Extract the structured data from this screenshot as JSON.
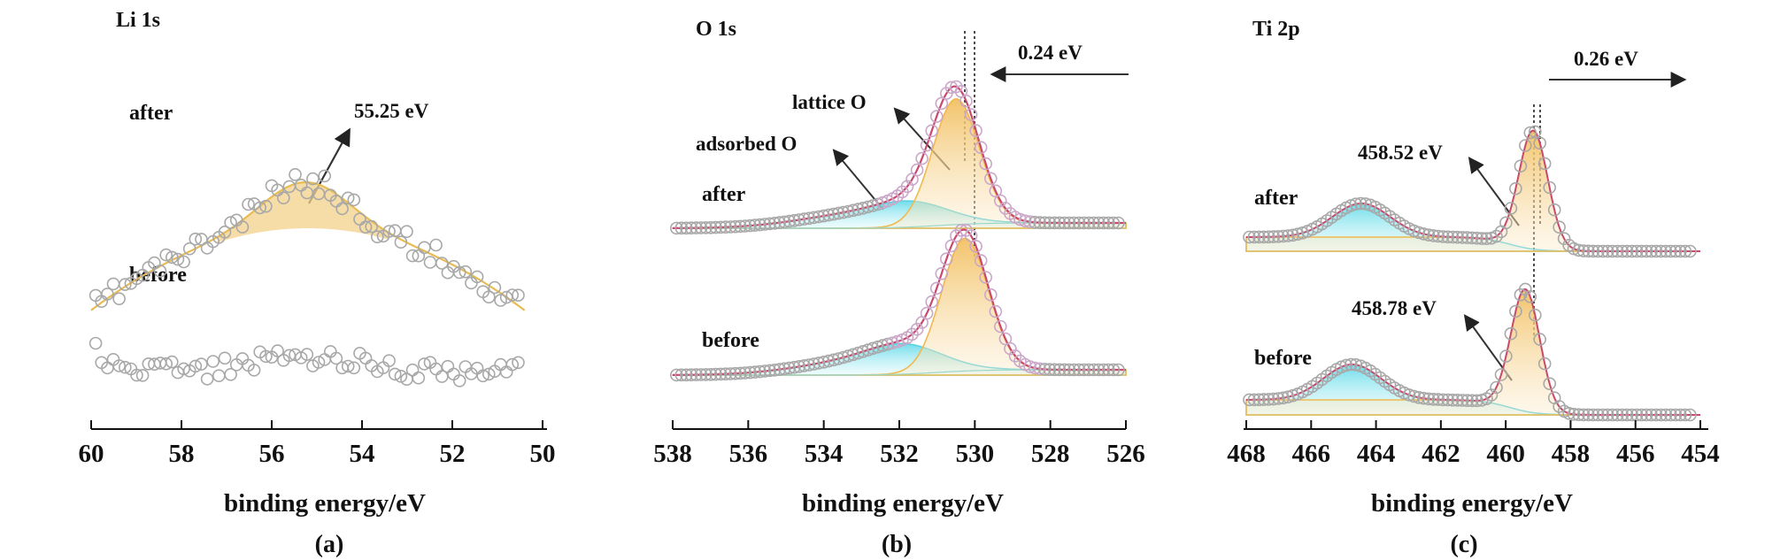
{
  "figure": {
    "panels": [
      {
        "id": "a",
        "panel_label": "(a)",
        "title": "Li 1s",
        "xlabel": "binding energy/eV",
        "ticks": [
          "60",
          "58",
          "56",
          "54",
          "52",
          "50"
        ],
        "labels": {
          "after": "after",
          "before": "before"
        },
        "annotations": [
          "55.25 eV"
        ]
      },
      {
        "id": "b",
        "panel_label": "(b)",
        "title": "O 1s",
        "xlabel": "binding energy/eV",
        "ticks": [
          "538",
          "536",
          "534",
          "532",
          "530",
          "528",
          "526"
        ],
        "labels": {
          "after": "after",
          "before": "before"
        },
        "annotations": [
          "0.24 eV",
          "lattice O",
          "adsorbed O"
        ]
      },
      {
        "id": "c",
        "panel_label": "(c)",
        "title": "Ti 2p",
        "xlabel": "binding energy/eV",
        "ticks": [
          "468",
          "466",
          "464",
          "462",
          "460",
          "458",
          "456",
          "454"
        ],
        "labels": {
          "after": "after",
          "before": "before"
        },
        "annotations": [
          "0.26 eV",
          "458.52 eV",
          "458.78 eV"
        ]
      }
    ]
  },
  "chart_data": [
    {
      "type": "scatter",
      "title": "Li 1s",
      "xlabel": "binding energy/eV",
      "ylabel": "",
      "xlim": [
        60,
        50
      ],
      "reversed_x": true,
      "series": [
        {
          "name": "after",
          "fit_peak_center_eV": 55.25,
          "fit_fill_color": "#f5d48a",
          "fit_line_color": "#e6b94a"
        },
        {
          "name": "before"
        }
      ],
      "annotations": [
        {
          "text": "55.25 eV",
          "x": 55.25
        }
      ]
    },
    {
      "type": "line",
      "title": "O 1s",
      "xlabel": "binding energy/eV",
      "ylabel": "",
      "xlim": [
        538,
        526
      ],
      "reversed_x": true,
      "series": [
        {
          "name": "after",
          "components": [
            {
              "label": "lattice O",
              "center_eV": 530.5,
              "color": "#f3c66a"
            },
            {
              "label": "adsorbed O",
              "center_eV": 531.6,
              "color": "#7fe3ee"
            }
          ]
        },
        {
          "name": "before",
          "components": [
            {
              "label": "lattice O",
              "center_eV": 530.26,
              "color": "#f3c66a"
            },
            {
              "label": "adsorbed O",
              "center_eV": 531.8,
              "color": "#7fe3ee"
            }
          ]
        }
      ],
      "shift": {
        "text": "0.24 eV",
        "direction": "left"
      }
    },
    {
      "type": "line",
      "title": "Ti 2p",
      "xlabel": "binding energy/eV",
      "ylabel": "",
      "xlim": [
        468,
        453
      ],
      "reversed_x": true,
      "series": [
        {
          "name": "after",
          "peaks_eV": [
            464.2,
            458.52
          ],
          "colors": [
            "#7fe3ee",
            "#f3c66a"
          ]
        },
        {
          "name": "before",
          "peaks_eV": [
            464.5,
            458.78
          ],
          "colors": [
            "#7fe3ee",
            "#f3c66a"
          ]
        }
      ],
      "shift": {
        "text": "0.26 eV",
        "direction": "right"
      },
      "annotations": [
        {
          "text": "458.52 eV",
          "x": 458.52
        },
        {
          "text": "458.78 eV",
          "x": 458.78
        }
      ]
    }
  ]
}
